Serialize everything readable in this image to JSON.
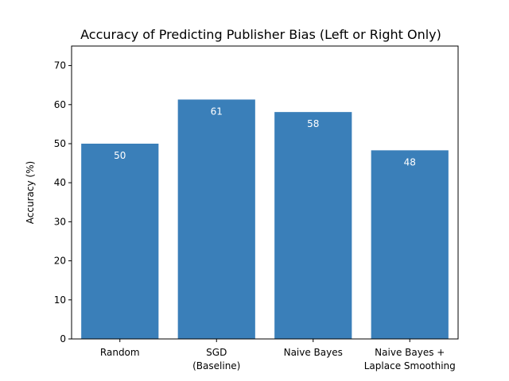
{
  "chart_data": {
    "type": "bar",
    "title": "Accuracy of Predicting Publisher Bias (Left or Right Only)",
    "xlabel": "",
    "ylabel": "Accuracy (%)",
    "ylim": [
      0,
      75
    ],
    "yticks": [
      0,
      10,
      20,
      30,
      40,
      50,
      60,
      70
    ],
    "categories": [
      [
        "Random"
      ],
      [
        "SGD",
        "(Baseline)"
      ],
      [
        "Naive Bayes"
      ],
      [
        "Naive Bayes +",
        "Laplace Smoothing"
      ]
    ],
    "values": [
      50,
      61.3,
      58.1,
      48.3
    ],
    "data_labels": [
      "50",
      "61",
      "58",
      "48"
    ],
    "bar_color": "#3a7fb9",
    "grid": false,
    "legend": "none"
  }
}
